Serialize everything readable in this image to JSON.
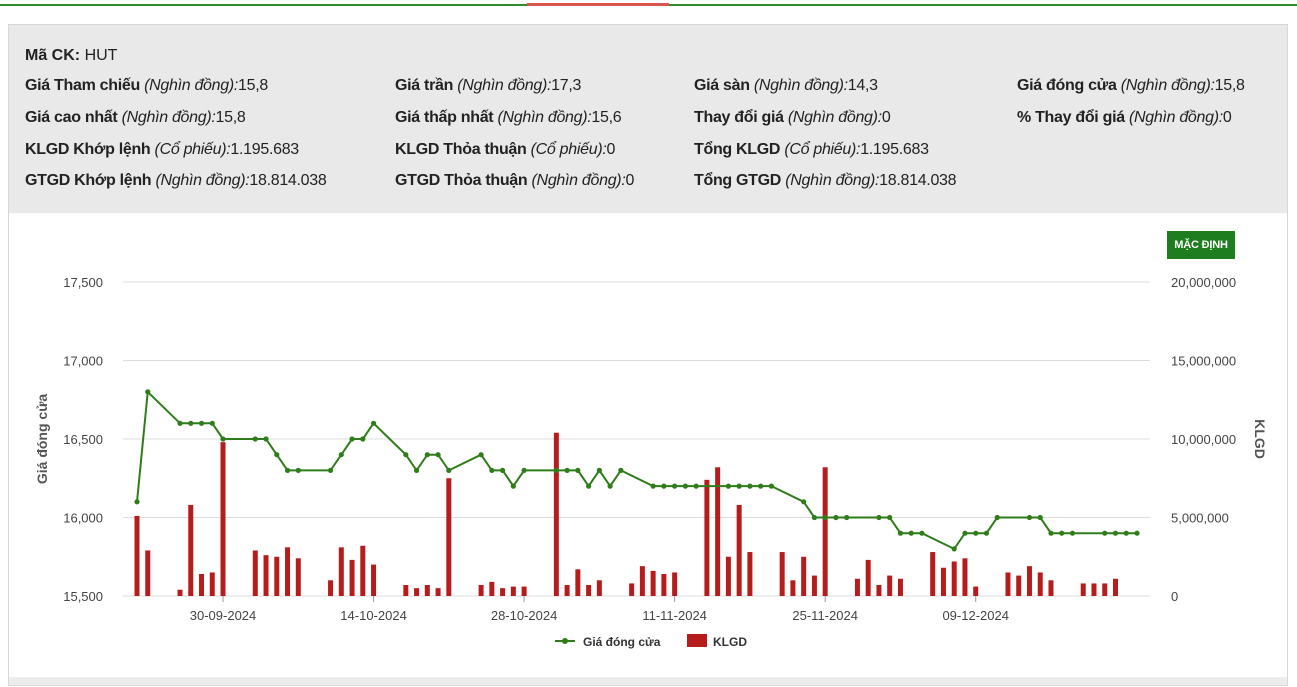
{
  "info": {
    "symbol": {
      "label": "Mã CK:",
      "value": "HUT"
    },
    "rows": [
      [
        {
          "label": "Giá Tham chiếu",
          "unit": "(Nghìn đồng):",
          "value": "15,8"
        },
        {
          "label": "Giá trần",
          "unit": "(Nghìn đồng):",
          "value": "17,3"
        },
        {
          "label": "Giá sàn",
          "unit": "(Nghìn đồng):",
          "value": "14,3"
        },
        {
          "label": "Giá đóng cửa",
          "unit": "(Nghìn đồng):",
          "value": "15,8"
        }
      ],
      [
        {
          "label": "Giá cao nhất",
          "unit": "(Nghìn đồng):",
          "value": "15,8"
        },
        {
          "label": "Giá thấp nhất",
          "unit": "(Nghìn đồng):",
          "value": "15,6"
        },
        {
          "label": "Thay đổi giá",
          "unit": "(Nghìn đồng):",
          "value": "0"
        },
        {
          "label": "% Thay đổi giá",
          "unit": "(Nghìn đồng):",
          "value": "0"
        }
      ],
      [
        {
          "label": "KLGD Khớp lệnh",
          "unit": "(Cổ phiếu):",
          "value": "1.195.683"
        },
        {
          "label": "KLGD Thỏa thuận",
          "unit": "(Cổ phiếu):",
          "value": "0"
        },
        {
          "label": "Tổng KLGD",
          "unit": "(Cổ phiếu):",
          "value": "1.195.683"
        }
      ],
      [
        {
          "label": "GTGD Khớp lệnh",
          "unit": "(Nghìn đồng):",
          "value": "18.814.038"
        },
        {
          "label": "GTGD Thỏa thuận",
          "unit": "(Nghìn đồng):",
          "value": "0"
        },
        {
          "label": "Tổng GTGD",
          "unit": "(Nghìn đồng):",
          "value": "18.814.038"
        }
      ]
    ]
  },
  "toolbar": {
    "default_label": "MẶC ĐỊNH"
  },
  "colors": {
    "price_line": "#2e7d1a",
    "volume_bar": "#b71c1c",
    "button": "#1e7d1e",
    "top_rule": "#2e8b2e"
  },
  "chart_data": {
    "type": "bar+line",
    "left_axis": {
      "label": "Giá đóng cửa",
      "range": [
        15500,
        17500
      ],
      "ticks": [
        "15,500",
        "16,000",
        "16,500",
        "17,000",
        "17,500"
      ],
      "tick_values": [
        15500,
        16000,
        16500,
        17000,
        17500
      ]
    },
    "right_axis": {
      "label": "KLGD",
      "range": [
        0,
        20000000
      ],
      "ticks": [
        "0",
        "5,000,000",
        "10,000,000",
        "15,000,000",
        "20,000,000"
      ],
      "tick_values": [
        0,
        5000000,
        10000000,
        15000000,
        20000000
      ]
    },
    "x_ticks": [
      "30-09-2024",
      "14-10-2024",
      "28-10-2024",
      "11-11-2024",
      "25-11-2024",
      "09-12-2024"
    ],
    "x_tick_index": [
      8,
      22,
      36,
      50,
      64,
      78
    ],
    "legend": [
      {
        "name": "Giá đóng cửa",
        "type": "line"
      },
      {
        "name": "KLGD",
        "type": "bar"
      }
    ],
    "legend_position": "bottom-center",
    "grid": true,
    "close_price": [
      16100,
      16800,
      null,
      null,
      16600,
      16600,
      16600,
      16600,
      16500,
      null,
      null,
      16500,
      16500,
      16400,
      16300,
      16300,
      null,
      null,
      16300,
      16400,
      16500,
      16500,
      16600,
      null,
      null,
      16400,
      16300,
      16400,
      16400,
      16300,
      null,
      null,
      16400,
      16300,
      16300,
      16200,
      16300,
      null,
      null,
      16300,
      16300,
      16300,
      16200,
      16300,
      16200,
      16300,
      null,
      null,
      16200,
      16200,
      16200,
      16200,
      16200,
      null,
      null,
      16200,
      16200,
      16200,
      16200,
      16200,
      null,
      null,
      16100,
      16000,
      16000,
      16000,
      16000,
      null,
      null,
      16000,
      16000,
      15900,
      15900,
      15900,
      null,
      null,
      15800,
      15900,
      15900,
      15900,
      16000,
      null,
      null,
      16000,
      16000,
      15900,
      15900,
      15900,
      null,
      null,
      15900,
      15900,
      15900,
      15900
    ],
    "volume": [
      5100000,
      2900000,
      null,
      null,
      400000,
      5800000,
      1400000,
      1500000,
      9800000,
      null,
      null,
      2900000,
      2600000,
      2500000,
      3100000,
      2400000,
      null,
      null,
      1000000,
      3100000,
      2300000,
      3200000,
      2000000,
      null,
      null,
      700000,
      500000,
      700000,
      500000,
      7500000,
      null,
      null,
      700000,
      900000,
      500000,
      600000,
      600000,
      null,
      null,
      10400000,
      700000,
      1700000,
      700000,
      1000000,
      null,
      null,
      800000,
      1900000,
      1600000,
      1400000,
      1500000,
      null,
      null,
      7400000,
      8200000,
      2500000,
      5800000,
      2800000,
      null,
      null,
      2800000,
      1000000,
      2500000,
      1300000,
      8200000,
      null,
      null,
      1100000,
      2300000,
      700000,
      1300000,
      1100000,
      null,
      null,
      2800000,
      1800000,
      2200000,
      2400000,
      600000,
      null,
      null,
      1500000,
      1300000,
      1900000,
      1500000,
      1000000,
      null,
      null,
      800000,
      800000,
      800000,
      1100000
    ]
  }
}
